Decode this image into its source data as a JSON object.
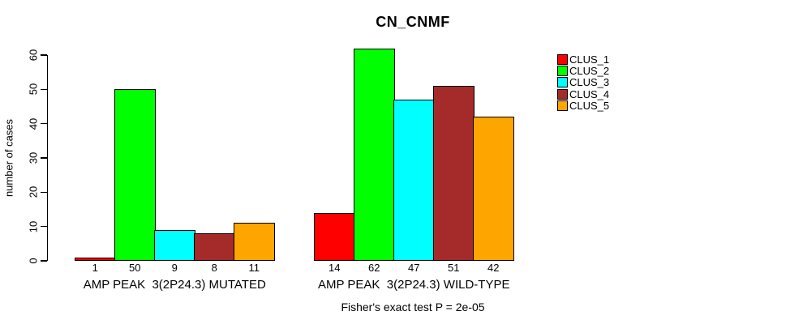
{
  "chart_data": {
    "type": "bar",
    "title": "CN_CNMF",
    "ylabel": "number of cases",
    "ylim": [
      0,
      60
    ],
    "yticks": [
      0,
      10,
      20,
      30,
      40,
      50,
      60
    ],
    "grid": false,
    "legend_position": "top-right",
    "categories": [
      "AMP PEAK  3(2P24.3) MUTATED",
      "AMP PEAK  3(2P24.3) WILD-TYPE"
    ],
    "series": [
      {
        "name": "CLUS_1",
        "color": "#FF0000",
        "values": [
          1,
          14
        ]
      },
      {
        "name": "CLUS_2",
        "color": "#00FF00",
        "values": [
          50,
          62
        ]
      },
      {
        "name": "CLUS_3",
        "color": "#00FFFF",
        "values": [
          9,
          47
        ]
      },
      {
        "name": "CLUS_4",
        "color": "#A52A2A",
        "values": [
          8,
          51
        ]
      },
      {
        "name": "CLUS_5",
        "color": "#FFA500",
        "values": [
          11,
          42
        ]
      }
    ],
    "bar_value_labels": [
      [
        "1",
        "50",
        "9",
        "8",
        "11"
      ],
      [
        "14",
        "62",
        "47",
        "51",
        "42"
      ]
    ],
    "annotation": "Fisher's exact test P = 2e-05",
    "colors": {
      "background": "#FFFFFF",
      "axis": "#000000",
      "text": "#000000"
    }
  }
}
